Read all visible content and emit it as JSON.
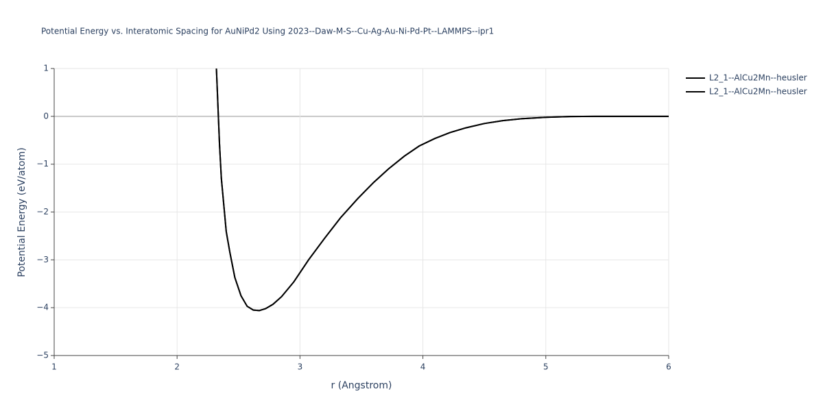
{
  "chart_data": {
    "type": "line",
    "title": "Potential Energy vs. Interatomic Spacing for AuNiPd2 Using 2023--Daw-M-S--Cu-Ag-Au-Ni-Pd-Pt--LAMMPS--ipr1",
    "x_label": "r (Angstrom)",
    "y_label": "Potential Energy (eV/atom)",
    "x": [
      2.32,
      2.345,
      2.36,
      2.4,
      2.43,
      2.47,
      2.52,
      2.57,
      2.62,
      2.67,
      2.72,
      2.78,
      2.85,
      2.95,
      3.07,
      3.2,
      3.33,
      3.47,
      3.6,
      3.72,
      3.85,
      3.97,
      4.1,
      4.22,
      4.35,
      4.5,
      4.65,
      4.8,
      5.0,
      5.2,
      5.4,
      6.0
    ],
    "series": [
      {
        "name": "L2_1--AlCu2Mn--heusler",
        "color": "#000000",
        "values": [
          1.0,
          -0.57,
          -1.29,
          -2.41,
          -2.85,
          -3.37,
          -3.75,
          -3.97,
          -4.05,
          -4.06,
          -4.02,
          -3.93,
          -3.77,
          -3.46,
          -3.0,
          -2.55,
          -2.12,
          -1.72,
          -1.38,
          -1.1,
          -0.83,
          -0.62,
          -0.46,
          -0.34,
          -0.24,
          -0.15,
          -0.09,
          -0.05,
          -0.02,
          -0.005,
          0,
          0
        ]
      },
      {
        "name": "L2_1--AlCu2Mn--heusler",
        "color": "#000000",
        "values": [
          1.0,
          -0.57,
          -1.29,
          -2.41,
          -2.85,
          -3.37,
          -3.75,
          -3.97,
          -4.05,
          -4.06,
          -4.02,
          -3.93,
          -3.77,
          -3.46,
          -3.0,
          -2.55,
          -2.12,
          -1.72,
          -1.38,
          -1.1,
          -0.83,
          -0.62,
          -0.46,
          -0.34,
          -0.24,
          -0.15,
          -0.09,
          -0.05,
          -0.02,
          -0.005,
          0,
          0
        ]
      }
    ],
    "xlim": [
      1,
      6
    ],
    "ylim": [
      -5,
      1
    ],
    "xticks": [
      1,
      2,
      3,
      4,
      5,
      6
    ],
    "yticks": [
      {
        "value": -5,
        "label": "−5"
      },
      {
        "value": -4,
        "label": "−4"
      },
      {
        "value": -3,
        "label": "−3"
      },
      {
        "value": -2,
        "label": "−2"
      },
      {
        "value": -1,
        "label": "−1"
      },
      0,
      1
    ],
    "grid": true
  }
}
